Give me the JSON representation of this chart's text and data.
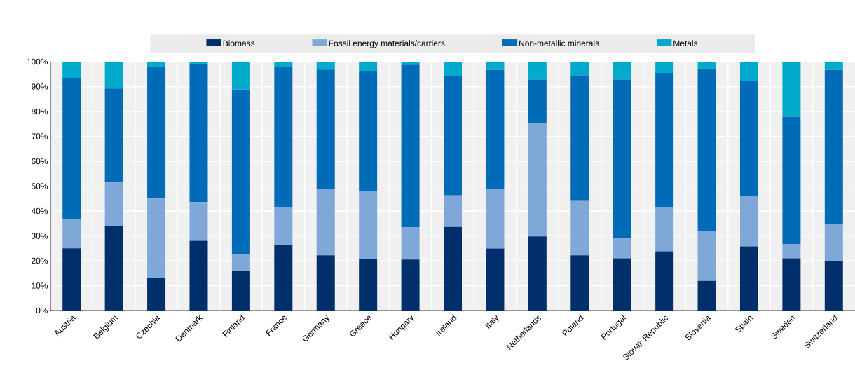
{
  "chart_data": {
    "type": "bar",
    "stacked": true,
    "categories": [
      "Austria",
      "Belgium",
      "Czechia",
      "Denmark",
      "Finland",
      "France",
      "Germany",
      "Greece",
      "Hungary",
      "Ireland",
      "Italy",
      "Netherlands",
      "Poland",
      "Portugal",
      "Slovak Republic",
      "Slovenia",
      "Spain",
      "Sweden",
      "Switzerland"
    ],
    "series": [
      {
        "name": "Biomass",
        "color": "#002f6c",
        "values": [
          25,
          33.8,
          13,
          28,
          15.8,
          26.3,
          22.2,
          20.8,
          20.5,
          33.6,
          24.9,
          29.8,
          22.2,
          21.0,
          23.8,
          11.9,
          25.8,
          21.0,
          20.0
        ]
      },
      {
        "name": "Fossil energy materials/carriers",
        "color": "#7fa8d9",
        "values": [
          11.7,
          17.7,
          32,
          15.6,
          6.8,
          15.4,
          26.8,
          27.2,
          13,
          12.7,
          23.8,
          45.7,
          21.8,
          8.1,
          17.8,
          20.2,
          20.1,
          5.6,
          14.8
        ]
      },
      {
        "name": "Non-metallic minerals",
        "color": "#006bb6",
        "values": [
          56.8,
          37.7,
          52.8,
          55.6,
          66.2,
          56.1,
          47.8,
          48.2,
          65.3,
          47.9,
          48,
          17.3,
          50.5,
          63.7,
          53.9,
          65.1,
          46.4,
          51.3,
          61.9
        ]
      },
      {
        "name": "Metals",
        "color": "#00aacc",
        "values": [
          6.5,
          10.8,
          2.2,
          0.8,
          11.2,
          2.2,
          3.2,
          3.8,
          1.2,
          5.8,
          3.3,
          7.2,
          5.3,
          7.2,
          4.5,
          2.8,
          7.7,
          22.1,
          3.3
        ]
      }
    ],
    "ylim": [
      0,
      100
    ],
    "yticks": [
      {
        "value": 0,
        "label": "0%"
      },
      {
        "value": 10,
        "label": "10%"
      },
      {
        "value": 20,
        "label": "20%"
      },
      {
        "value": 30,
        "label": "30%"
      },
      {
        "value": 40,
        "label": "40%"
      },
      {
        "value": 50,
        "label": "50%"
      },
      {
        "value": 60,
        "label": "60%"
      },
      {
        "value": 70,
        "label": "70%"
      },
      {
        "value": 80,
        "label": "80%"
      },
      {
        "value": 90,
        "label": "90%"
      },
      {
        "value": 100,
        "label": "100%"
      }
    ],
    "grid": true,
    "legend": "top"
  }
}
